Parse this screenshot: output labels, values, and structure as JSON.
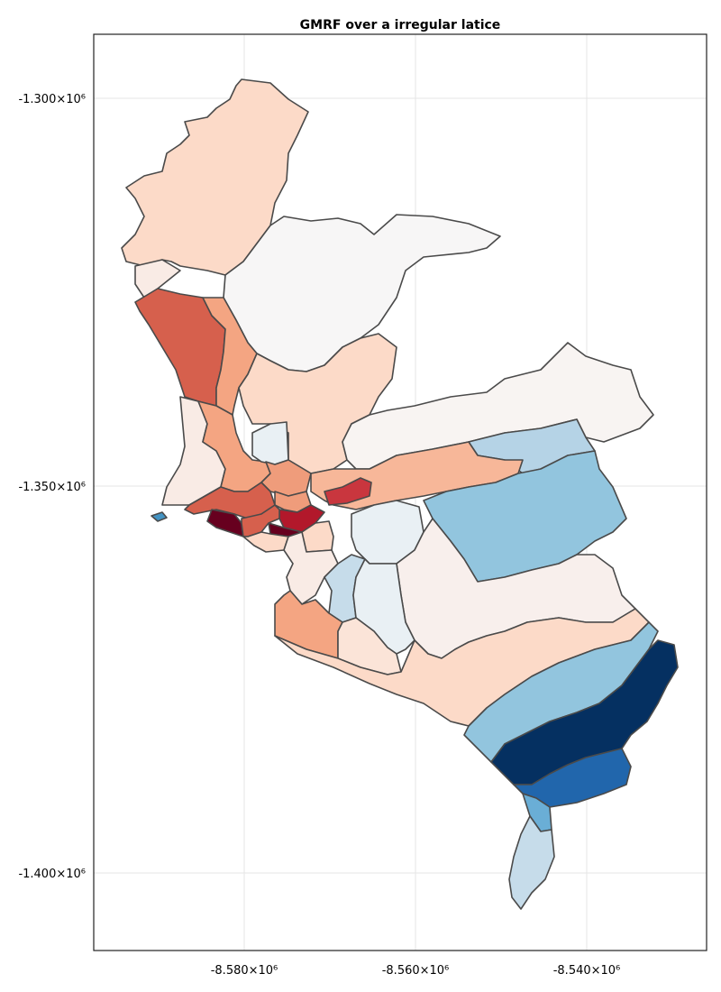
{
  "title": "GMRF over a irregular latice",
  "x_ticks": [
    "-8.580×10⁶",
    "-8.560×10⁶",
    "-8.540×10⁶"
  ],
  "y_ticks": [
    "-1.300×10⁶",
    "-1.350×10⁶",
    "-1.400×10⁶"
  ],
  "colors": {
    "boundary": "#4a4a4a",
    "gridline": "#e6e6e6",
    "darkest_red": "#67001f",
    "darkest_blue": "#053061"
  },
  "chart_data": {
    "type": "heatmap",
    "title": "GMRF over a irregular latice",
    "xlabel": "",
    "ylabel": "",
    "xlim": [
      -8597000.0,
      -8526000.0
    ],
    "ylim": [
      -1410000.0,
      -1291500.0
    ],
    "x_tick_values": [
      -8580000.0,
      -8560000.0,
      -8540000.0
    ],
    "y_tick_values": [
      -1300000.0,
      -1350000.0,
      -1400000.0
    ],
    "grid": true,
    "colormap": "diverging red-white-blue",
    "regions": 48
  }
}
